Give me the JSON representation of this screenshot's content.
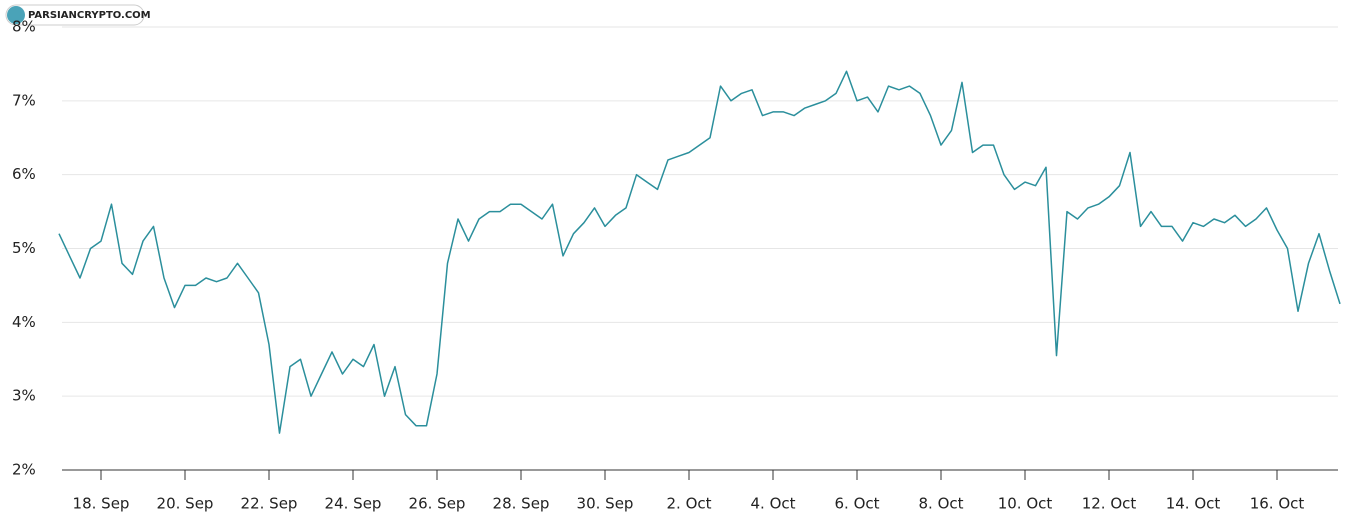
{
  "watermark": "PARSIANCRYPTO.COM",
  "chart_data": {
    "type": "line",
    "color": "#2b8f9c",
    "grid": true,
    "values": [
      5.2,
      4.9,
      4.6,
      5.0,
      5.1,
      5.6,
      4.8,
      4.65,
      5.1,
      5.3,
      4.6,
      4.2,
      4.5,
      4.5,
      4.6,
      4.55,
      4.6,
      4.8,
      4.6,
      4.4,
      3.7,
      2.5,
      3.4,
      3.5,
      3.0,
      3.3,
      3.6,
      3.3,
      3.5,
      3.4,
      3.7,
      3.0,
      3.4,
      2.75,
      2.6,
      2.6,
      3.3,
      4.8,
      5.4,
      5.1,
      5.4,
      5.5,
      5.5,
      5.6,
      5.6,
      5.5,
      5.4,
      5.6,
      4.9,
      5.2,
      5.35,
      5.55,
      5.3,
      5.45,
      5.55,
      6.0,
      5.9,
      5.8,
      6.2,
      6.25,
      6.3,
      6.4,
      6.5,
      7.2,
      7.0,
      7.1,
      7.15,
      6.8,
      6.85,
      6.85,
      6.8,
      6.9,
      6.95,
      7.0,
      7.1,
      7.4,
      7.0,
      7.05,
      6.85,
      7.2,
      7.15,
      7.2,
      7.1,
      6.8,
      6.4,
      6.6,
      7.25,
      6.3,
      6.4,
      6.4,
      6.0,
      5.8,
      5.9,
      5.85,
      6.1,
      3.55,
      5.5,
      5.4,
      5.55,
      5.6,
      5.7,
      5.85,
      6.3,
      5.3,
      5.5,
      5.3,
      5.3,
      5.1,
      5.35,
      5.3,
      5.4,
      5.35,
      5.45,
      5.3,
      5.4,
      5.55,
      5.25,
      5.0,
      4.15,
      4.8,
      5.2,
      4.7,
      4.25
    ],
    "xlim": [
      0,
      122
    ],
    "xticks": [
      {
        "value": 4,
        "label": "18. Sep"
      },
      {
        "value": 12,
        "label": "20. Sep"
      },
      {
        "value": 20,
        "label": "22. Sep"
      },
      {
        "value": 28,
        "label": "24. Sep"
      },
      {
        "value": 36,
        "label": "26. Sep"
      },
      {
        "value": 44,
        "label": "28. Sep"
      },
      {
        "value": 52,
        "label": "30. Sep"
      },
      {
        "value": 60,
        "label": "2. Oct"
      },
      {
        "value": 68,
        "label": "4. Oct"
      },
      {
        "value": 76,
        "label": "6. Oct"
      },
      {
        "value": 84,
        "label": "8. Oct"
      },
      {
        "value": 92,
        "label": "10. Oct"
      },
      {
        "value": 100,
        "label": "12. Oct"
      },
      {
        "value": 108,
        "label": "14. Oct"
      },
      {
        "value": 116,
        "label": "16. Oct"
      }
    ],
    "ylim": [
      2,
      8
    ],
    "yticks": [
      {
        "value": 2,
        "label": "2%"
      },
      {
        "value": 3,
        "label": "3%"
      },
      {
        "value": 4,
        "label": "4%"
      },
      {
        "value": 5,
        "label": "5%"
      },
      {
        "value": 6,
        "label": "6%"
      },
      {
        "value": 7,
        "label": "7%"
      },
      {
        "value": 8,
        "label": "8%"
      }
    ]
  }
}
